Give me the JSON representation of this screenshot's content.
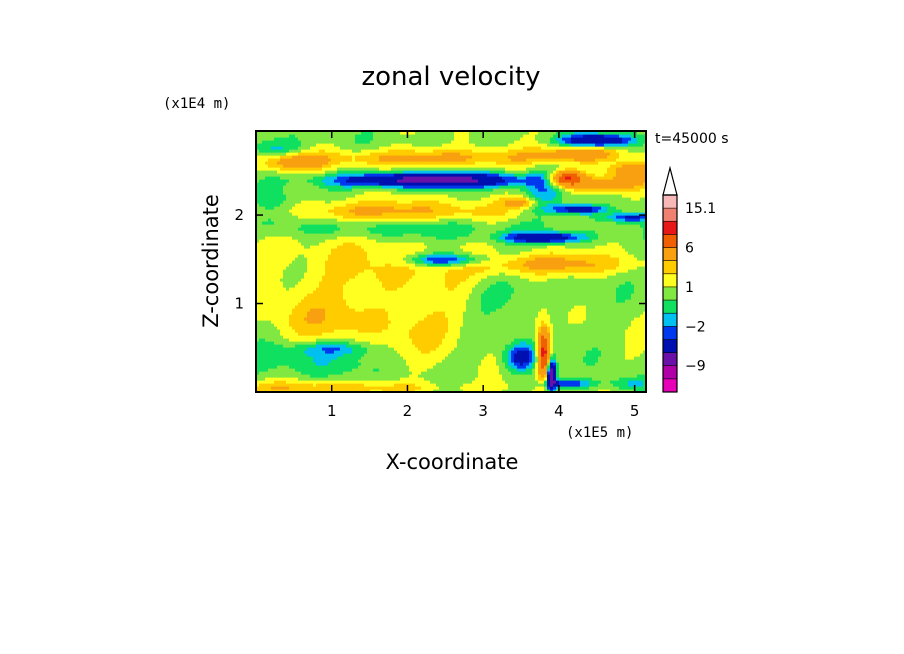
{
  "chart_data": {
    "type": "heatmap",
    "title": "zonal velocity",
    "xlabel": "X-coordinate",
    "ylabel": "Z-coordinate",
    "x_unit": "(x1E5 m)",
    "y_unit": "(x1E4 m)",
    "time_label": "t=45000 s",
    "xlim": [
      0,
      5.15
    ],
    "ylim": [
      0,
      2.95
    ],
    "x_ticks": [
      {
        "value": 1,
        "label": "1"
      },
      {
        "value": 2,
        "label": "2"
      },
      {
        "value": 3,
        "label": "3"
      },
      {
        "value": 4,
        "label": "4"
      },
      {
        "value": 5,
        "label": "5"
      }
    ],
    "y_ticks": [
      {
        "value": 1,
        "label": "1"
      },
      {
        "value": 2,
        "label": "2"
      }
    ],
    "colorbar": {
      "levels": [
        -15,
        -12,
        -9,
        -6,
        -3,
        -2,
        -1,
        0,
        1,
        2,
        3,
        6,
        9,
        12,
        15.1
      ],
      "colors": [
        "#e800b8",
        "#b000a8",
        "#6a10a8",
        "#0010b0",
        "#0038f0",
        "#00c0f0",
        "#10e060",
        "#80e840",
        "#ffff20",
        "#ffcc00",
        "#f8a010",
        "#f06000",
        "#e81818",
        "#f08070",
        "#f8b8b8"
      ],
      "extend_max_color": "#ffffff",
      "labels": [
        {
          "value": 15.1,
          "label": "15.1"
        },
        {
          "value": 6,
          "label": "6"
        },
        {
          "value": 1,
          "label": "1"
        },
        {
          "value": -2,
          "label": "−2"
        },
        {
          "value": -9,
          "label": "−9"
        }
      ]
    },
    "features": [
      {
        "x": 1.5,
        "z": 1.3,
        "sx": 1.6,
        "sz": 0.6,
        "v": 1.5
      },
      {
        "x": 0.8,
        "z": 0.8,
        "sx": 0.7,
        "sz": 0.25,
        "v": 1.2
      },
      {
        "x": 2.2,
        "z": 0.7,
        "sx": 0.6,
        "sz": 0.3,
        "v": 1.0
      },
      {
        "x": 0.5,
        "z": 2.6,
        "sx": 0.4,
        "sz": 0.1,
        "v": 3.0
      },
      {
        "x": 2.3,
        "z": 2.65,
        "sx": 1.6,
        "sz": 0.1,
        "v": 3.0
      },
      {
        "x": 1.6,
        "z": 2.05,
        "sx": 1.6,
        "sz": 0.12,
        "v": 2.5
      },
      {
        "x": 3.9,
        "z": 1.45,
        "sx": 1.0,
        "sz": 0.12,
        "v": 3.0
      },
      {
        "x": 4.6,
        "z": 2.35,
        "sx": 0.5,
        "sz": 0.08,
        "v": 3.5
      },
      {
        "x": 4.3,
        "z": 2.7,
        "sx": 0.5,
        "sz": 0.08,
        "v": 4.0
      },
      {
        "x": 4.1,
        "z": 2.42,
        "sx": 0.22,
        "sz": 0.08,
        "v": 9.0
      },
      {
        "x": 3.5,
        "z": 2.15,
        "sx": 0.25,
        "sz": 0.06,
        "v": 3.0
      },
      {
        "x": 5.0,
        "z": 2.5,
        "sx": 0.3,
        "sz": 0.1,
        "v": 4.5
      },
      {
        "x": 0.9,
        "z": 0.05,
        "sx": 2.0,
        "sz": 0.08,
        "v": 2.0
      },
      {
        "x": 3.8,
        "z": 0.45,
        "sx": 0.08,
        "sz": 0.25,
        "v": 10.0
      },
      {
        "x": 2.3,
        "z": 2.4,
        "sx": 1.2,
        "sz": 0.08,
        "v": -8.0
      },
      {
        "x": 3.8,
        "z": 1.75,
        "sx": 0.5,
        "sz": 0.06,
        "v": -6.0
      },
      {
        "x": 2.5,
        "z": 1.5,
        "sx": 0.5,
        "sz": 0.07,
        "v": -4.5
      },
      {
        "x": 4.25,
        "z": 2.07,
        "sx": 0.35,
        "sz": 0.05,
        "v": -5.0
      },
      {
        "x": 4.95,
        "z": 1.98,
        "sx": 0.3,
        "sz": 0.05,
        "v": -4.0
      },
      {
        "x": 4.3,
        "z": 2.75,
        "sx": 0.5,
        "sz": 0.12,
        "v": -0.0
      },
      {
        "x": 4.5,
        "z": 2.85,
        "sx": 0.45,
        "sz": 0.07,
        "v": -6.0
      },
      {
        "x": 3.8,
        "z": 2.3,
        "sx": 0.22,
        "sz": 0.25,
        "v": -2.0
      },
      {
        "x": 0.3,
        "z": 2.05,
        "sx": 0.35,
        "sz": 0.2,
        "v": -2.0
      },
      {
        "x": 0.25,
        "z": 2.75,
        "sx": 0.35,
        "sz": 0.1,
        "v": -2.0
      },
      {
        "x": 0.6,
        "z": 0.35,
        "sx": 0.8,
        "sz": 0.18,
        "v": -1.5
      },
      {
        "x": 1.0,
        "z": 0.5,
        "sx": 0.5,
        "sz": 0.08,
        "v": -2.2
      },
      {
        "x": 3.5,
        "z": 0.4,
        "sx": 0.2,
        "sz": 0.15,
        "v": -5.0
      },
      {
        "x": 3.9,
        "z": 0.2,
        "sx": 0.06,
        "sz": 0.18,
        "v": -9.0
      },
      {
        "x": 4.1,
        "z": 0.1,
        "sx": 0.3,
        "sz": 0.05,
        "v": -4.0
      },
      {
        "x": 4.9,
        "z": 0.1,
        "sx": 0.3,
        "sz": 0.08,
        "v": -2.0
      },
      {
        "x": 2.0,
        "z": 1.85,
        "sx": 2.0,
        "sz": 0.12,
        "v": -1.6
      },
      {
        "x": 3.2,
        "z": 1.1,
        "sx": 0.5,
        "sz": 0.2,
        "v": -1.3
      }
    ]
  }
}
